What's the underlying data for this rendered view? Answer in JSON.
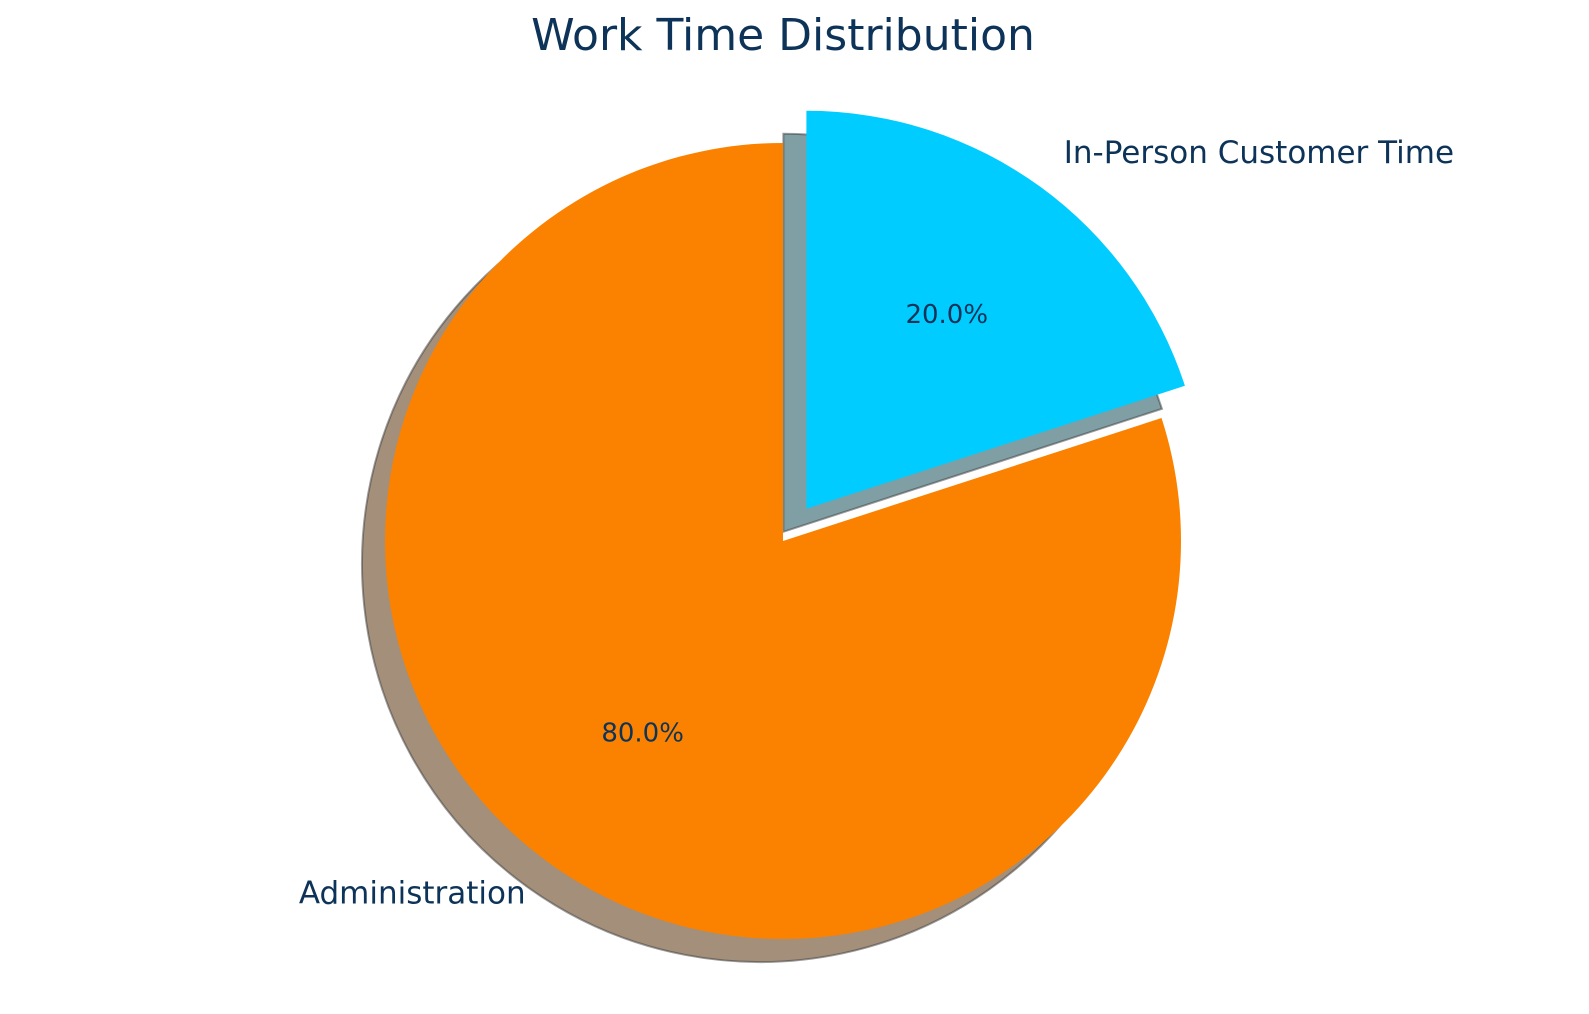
{
  "chart_data": {
    "type": "pie",
    "title": "Work Time Distribution",
    "categories": [
      "In-Person Customer Time",
      "Administration"
    ],
    "values": [
      20,
      80
    ],
    "value_labels": [
      "20.0%",
      "80.0%"
    ],
    "colors": [
      "#00ccff",
      "#fb8200"
    ],
    "shadow_colors": [
      "#7f9fa4",
      "#a38f7a"
    ],
    "explode": [
      0.1,
      0
    ]
  }
}
